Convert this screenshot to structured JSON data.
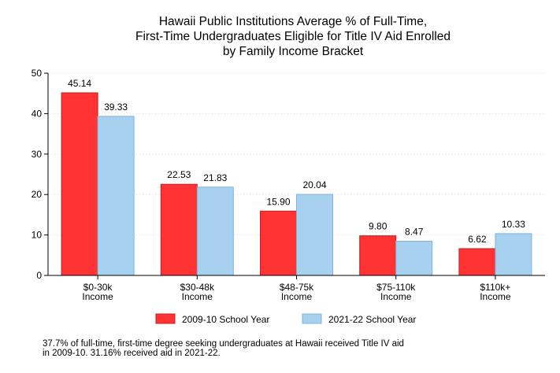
{
  "chart_data": {
    "type": "bar",
    "title_lines": [
      "Hawaii Public Institutions Average % of Full-Time,",
      "First-Time Undergraduates Eligible for Title IV Aid Enrolled",
      "by Family Income Bracket"
    ],
    "categories": [
      [
        "$0-30k",
        "Income"
      ],
      [
        "$30-48k",
        "Income"
      ],
      [
        "$48-75k",
        "Income"
      ],
      [
        "$75-110k",
        "Income"
      ],
      [
        "$110k+",
        "Income"
      ]
    ],
    "series": [
      {
        "name": "2009-10 School Year",
        "color": "#ff3333",
        "stroke": "#c81e1e",
        "values": [
          45.14,
          22.53,
          15.9,
          9.8,
          6.62
        ],
        "labels": [
          "45.14",
          "22.53",
          "15.90",
          "9.80",
          "6.62"
        ]
      },
      {
        "name": "2021-22 School Year",
        "color": "#a8d1f0",
        "stroke": "#7fb3dc",
        "values": [
          39.33,
          21.83,
          20.04,
          8.47,
          10.33
        ],
        "labels": [
          "39.33",
          "21.83",
          "20.04",
          "8.47",
          "10.33"
        ]
      }
    ],
    "ylim": [
      0,
      50
    ],
    "yticks": [
      "0",
      "10",
      "20",
      "30",
      "40",
      "50"
    ],
    "grid": true,
    "legend_position": "bottom"
  },
  "footnote_lines": [
    "37.7% of full-time, first-time degree seeking undergraduates at Hawaii received Title IV aid",
    "in 2009-10. 31.16% received aid in 2021-22."
  ]
}
